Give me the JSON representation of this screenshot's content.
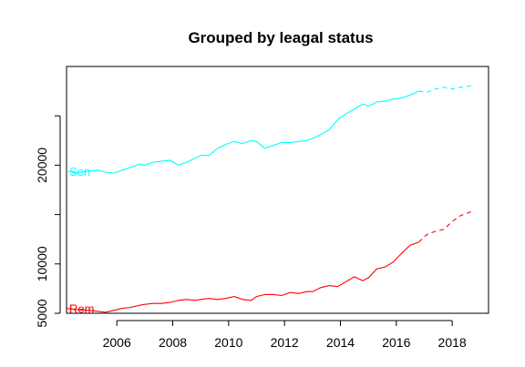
{
  "chart_data": {
    "type": "line",
    "title": "Grouped by leagal status",
    "xlabel": "",
    "ylabel": "",
    "xlim": [
      2004.2,
      2019.3
    ],
    "ylim": [
      5000,
      30000
    ],
    "x_ticks": [
      2006,
      2008,
      2010,
      2012,
      2014,
      2016,
      2018
    ],
    "x_tick_labels": [
      "2006",
      "2008",
      "2010",
      "2012",
      "2014",
      "2016",
      "2018"
    ],
    "y_ticks": [
      5000,
      10000,
      15000,
      20000,
      25000
    ],
    "y_tick_labels": [
      "5000",
      "10000",
      "",
      "20000",
      ""
    ],
    "grid": false,
    "legend": "none",
    "series": [
      {
        "name": "Sen",
        "label": "Sen",
        "color": "#00ffff",
        "observed": {
          "x": [
            2004.2,
            2004.5,
            2004.8,
            2005.0,
            2005.3,
            2005.6,
            2005.9,
            2006.2,
            2006.5,
            2006.8,
            2007.0,
            2007.3,
            2007.6,
            2007.9,
            2008.2,
            2008.5,
            2008.8,
            2009.0,
            2009.3,
            2009.6,
            2009.9,
            2010.2,
            2010.5,
            2010.8,
            2011.0,
            2011.3,
            2011.6,
            2011.9,
            2012.2,
            2012.5,
            2012.8,
            2013.0,
            2013.3,
            2013.6,
            2013.9,
            2014.2,
            2014.5,
            2014.8,
            2015.0,
            2015.3,
            2015.6,
            2015.9,
            2016.2,
            2016.5,
            2016.8
          ],
          "y": [
            19400,
            19200,
            19300,
            19400,
            19500,
            19300,
            19200,
            19500,
            19800,
            20100,
            20000,
            20300,
            20400,
            20500,
            20000,
            20300,
            20700,
            21000,
            21000,
            21700,
            22100,
            22400,
            22200,
            22500,
            22400,
            21700,
            22000,
            22300,
            22300,
            22400,
            22500,
            22700,
            23100,
            23600,
            24600,
            25200,
            25700,
            26200,
            26000,
            26400,
            26500,
            26700,
            26800,
            27100,
            27500
          ]
        },
        "forecast": {
          "x": [
            2016.8,
            2017.1,
            2017.4,
            2017.7,
            2018.0,
            2018.3,
            2018.6,
            2018.8
          ],
          "y": [
            27500,
            27400,
            27700,
            27900,
            27700,
            27900,
            28000,
            28200
          ]
        }
      },
      {
        "name": "Rem",
        "label": "Rem",
        "color": "#ff0000",
        "observed": {
          "x": [
            2004.2,
            2004.5,
            2004.8,
            2005.0,
            2005.3,
            2005.6,
            2005.9,
            2006.2,
            2006.5,
            2006.8,
            2007.0,
            2007.3,
            2007.6,
            2007.9,
            2008.2,
            2008.5,
            2008.8,
            2009.0,
            2009.3,
            2009.6,
            2009.9,
            2010.2,
            2010.5,
            2010.8,
            2011.0,
            2011.3,
            2011.6,
            2011.9,
            2012.2,
            2012.5,
            2012.8,
            2013.0,
            2013.3,
            2013.6,
            2013.9,
            2014.2,
            2014.5,
            2014.8,
            2015.0,
            2015.3,
            2015.6,
            2015.9,
            2016.2,
            2016.5,
            2016.8
          ],
          "y": [
            5500,
            5400,
            5300,
            5300,
            5200,
            5100,
            5300,
            5500,
            5600,
            5800,
            5900,
            6000,
            6000,
            6100,
            6300,
            6400,
            6300,
            6400,
            6500,
            6400,
            6500,
            6700,
            6400,
            6300,
            6700,
            6900,
            6900,
            6800,
            7100,
            7000,
            7200,
            7200,
            7600,
            7800,
            7700,
            8200,
            8700,
            8300,
            8600,
            9500,
            9700,
            10200,
            11100,
            11900,
            12200
          ]
        },
        "forecast": {
          "x": [
            2016.8,
            2017.1,
            2017.4,
            2017.7,
            2018.0,
            2018.3,
            2018.6,
            2018.8
          ],
          "y": [
            12200,
            13000,
            13300,
            13500,
            14300,
            14900,
            15200,
            15400
          ]
        }
      }
    ]
  }
}
